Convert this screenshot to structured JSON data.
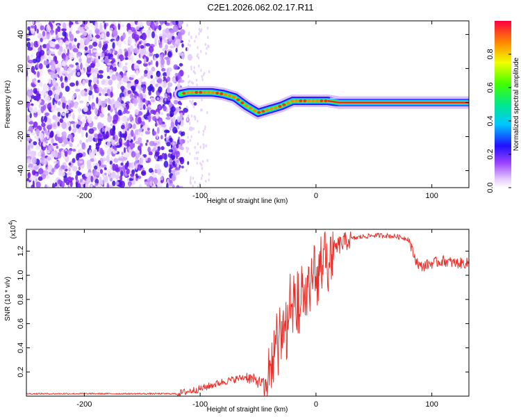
{
  "title": "C2E1.2026.062.02.17.R11",
  "chart_data": [
    {
      "type": "heatmap",
      "xlabel": "Height of straight line (km)",
      "ylabel": "Frequency (Hz)",
      "xlim": [
        -250,
        132
      ],
      "ylim": [
        -50,
        48
      ],
      "xticks": [
        -200,
        -100,
        0,
        100
      ],
      "yticks": [
        -40,
        -20,
        0,
        20,
        40
      ],
      "colorbar": {
        "label": "Normalized spectral amplitude",
        "range": [
          0,
          1
        ],
        "ticks": [
          0.0,
          0.2,
          0.4,
          0.6,
          0.8
        ],
        "tick_labels": [
          "0.0",
          "0.2",
          "0.4",
          "0.6",
          "0.8"
        ]
      },
      "tone_track": {
        "x": [
          -117,
          -110,
          -100,
          -90,
          -80,
          -70,
          -60,
          -55,
          -50,
          -45,
          -40,
          -30,
          -20,
          -10,
          0,
          10,
          20,
          50,
          80,
          100,
          132
        ],
        "y": [
          5,
          6,
          6,
          6,
          5,
          3,
          -2,
          -4,
          -6,
          -5,
          -4,
          -2,
          1,
          1,
          1,
          1,
          0,
          0,
          0,
          0,
          0
        ]
      }
    },
    {
      "type": "line",
      "xlabel": "Height of straight line (km)",
      "ylabel": "SNR (10 * v/v)",
      "y_multiplier": "(x10",
      "y_exponent": "4",
      "xlim": [
        -250,
        132
      ],
      "ylim": [
        0,
        1.38
      ],
      "xticks": [
        -200,
        -100,
        0,
        100
      ],
      "yticks": [
        0.2,
        0.4,
        0.6,
        0.8,
        1.0,
        1.2
      ],
      "ytick_labels": [
        "0.2",
        "0.4",
        "0.6",
        "0.8",
        "1.0",
        "1.2"
      ],
      "color": "#e8302a",
      "trend": {
        "x": [
          -250,
          -120,
          -100,
          -80,
          -60,
          -45,
          -40,
          -30,
          -20,
          -10,
          0,
          10,
          20,
          30,
          40,
          50,
          60,
          70,
          80,
          85,
          90,
          100,
          110,
          120,
          132
        ],
        "y": [
          0.02,
          0.02,
          0.06,
          0.12,
          0.16,
          0.1,
          0.3,
          0.55,
          0.75,
          0.9,
          1.05,
          1.15,
          1.25,
          1.3,
          1.32,
          1.33,
          1.33,
          1.32,
          1.3,
          1.15,
          1.07,
          1.1,
          1.12,
          1.1,
          1.1
        ]
      }
    }
  ]
}
